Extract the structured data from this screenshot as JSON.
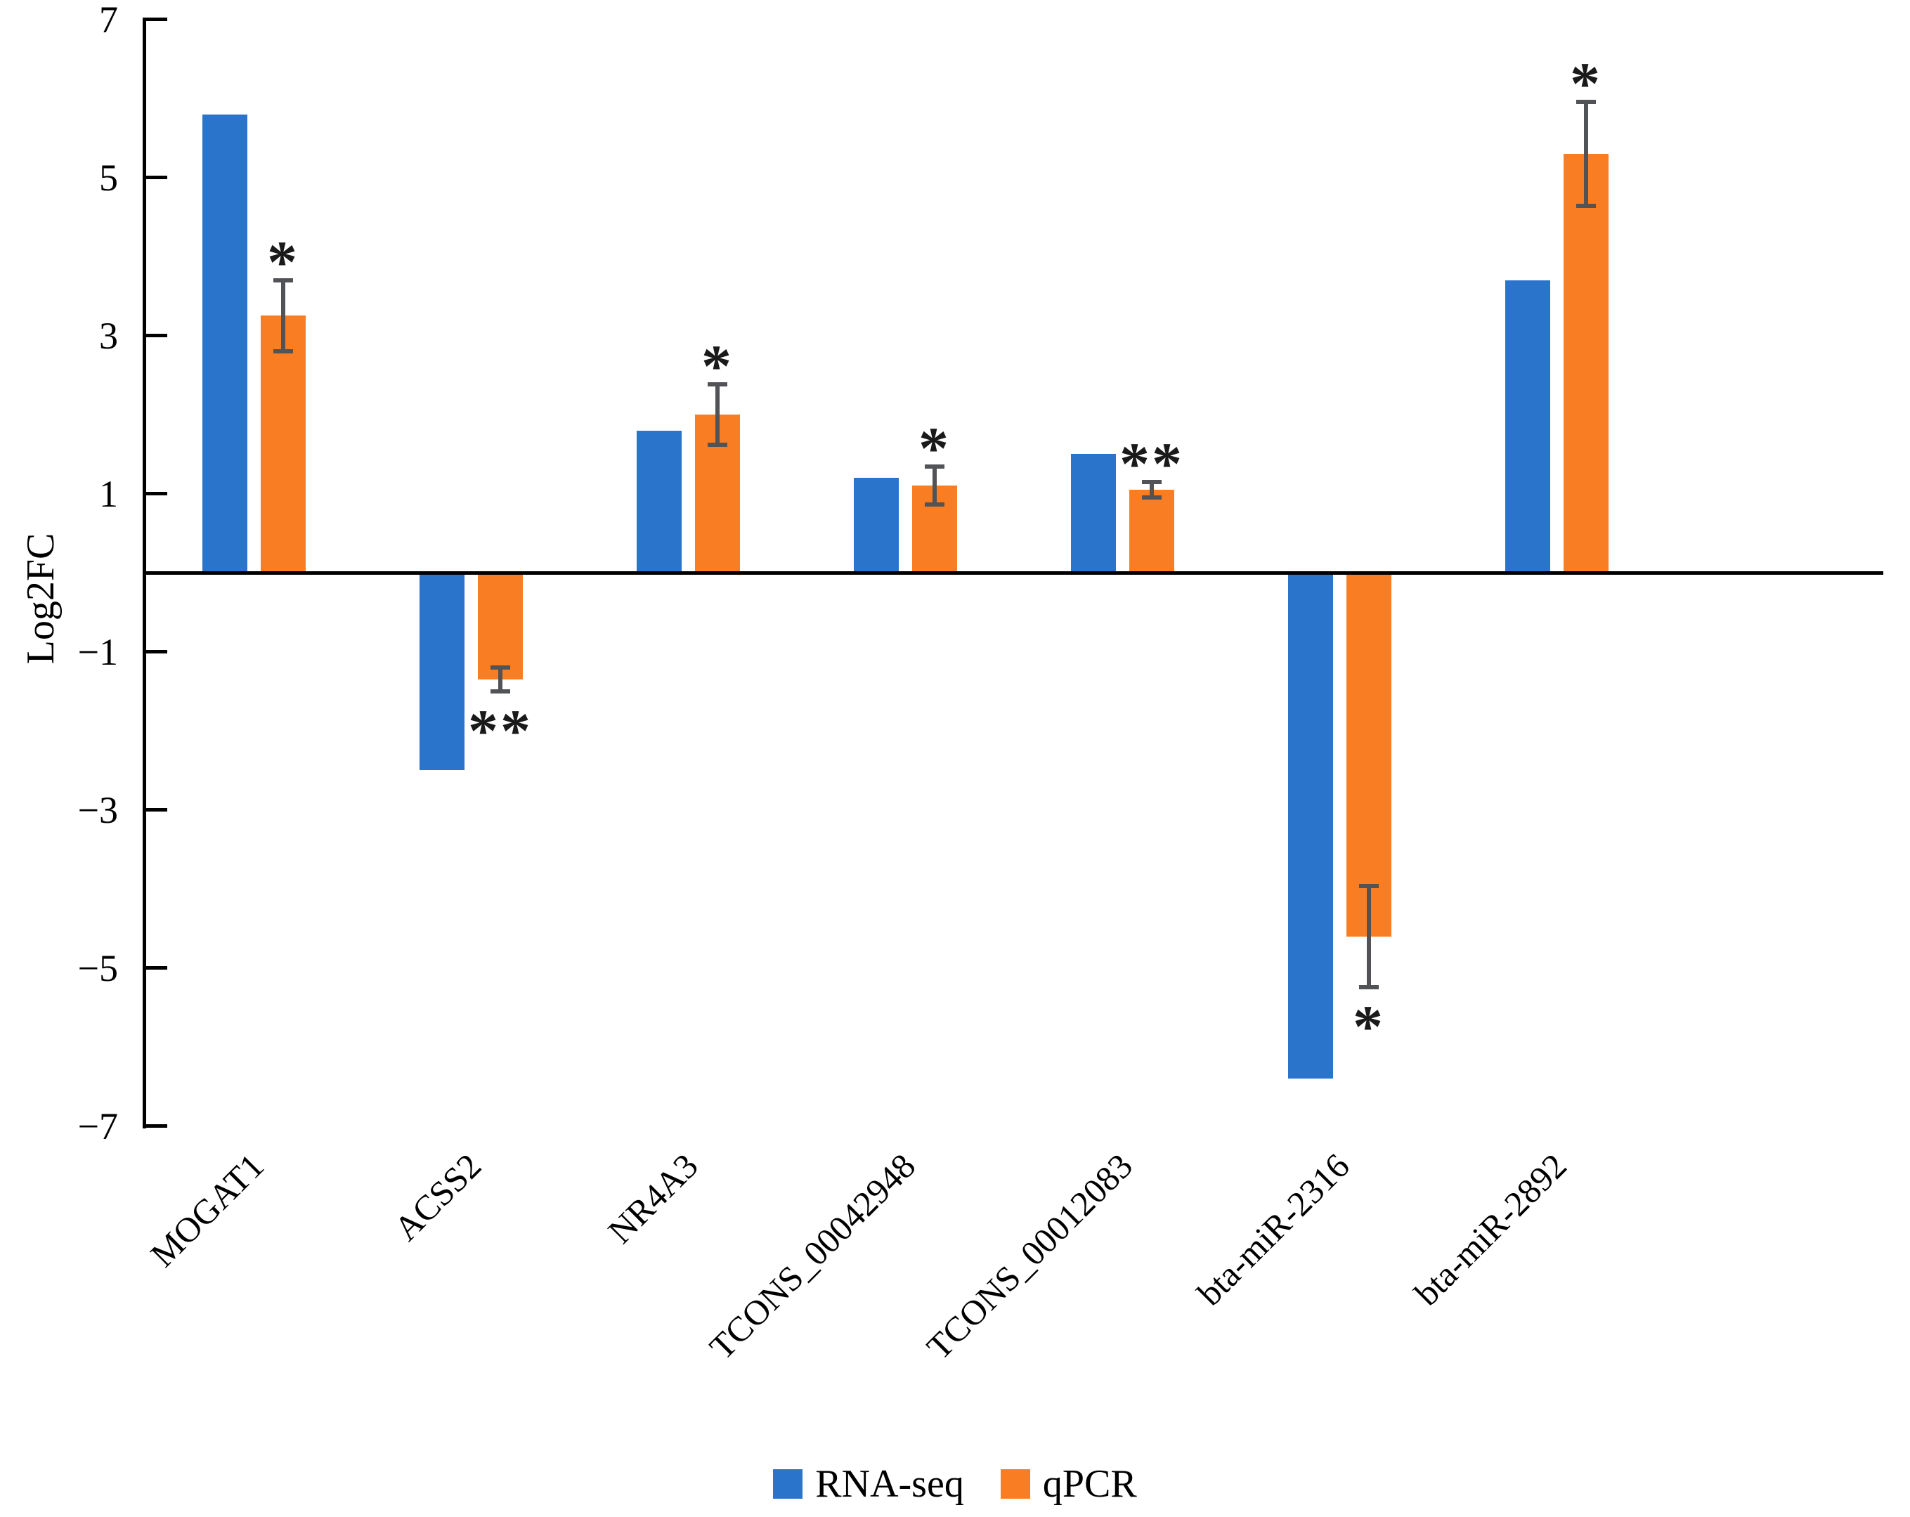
{
  "figure": {
    "ylabel": "Log2FC"
  },
  "chart_data": {
    "type": "bar",
    "title": "",
    "xlabel": "",
    "ylabel": "Log2FC",
    "ylim": [
      -7,
      7
    ],
    "yticks": [
      7,
      5,
      3,
      1,
      -1,
      -3,
      -5,
      -7
    ],
    "ytick_labels": [
      "7",
      "5",
      "3",
      "1",
      "−1",
      "−3",
      "−5",
      "−7"
    ],
    "grid": false,
    "legend_position": "bottom",
    "error_bar_color": "#525357",
    "categories": [
      "MOGAT1",
      "ACSS2",
      "NR4A3",
      "TCONS_00042948",
      "TCONS_00012083",
      "bta-miR-2316",
      "bta-miR-2892"
    ],
    "series": [
      {
        "name": "RNA-seq",
        "color": "#2B74CC",
        "values": [
          5.8,
          -2.5,
          1.8,
          1.2,
          1.5,
          -6.4,
          3.7
        ]
      },
      {
        "name": "qPCR",
        "color": "#F97E23",
        "values": [
          3.25,
          -1.35,
          2.0,
          1.1,
          1.05,
          -4.6,
          5.3
        ],
        "errors": [
          0.45,
          0.15,
          0.38,
          0.24,
          0.1,
          0.64,
          0.66
        ],
        "significance": [
          "*",
          "**",
          "*",
          "*",
          "**",
          "*",
          "*"
        ]
      }
    ]
  }
}
